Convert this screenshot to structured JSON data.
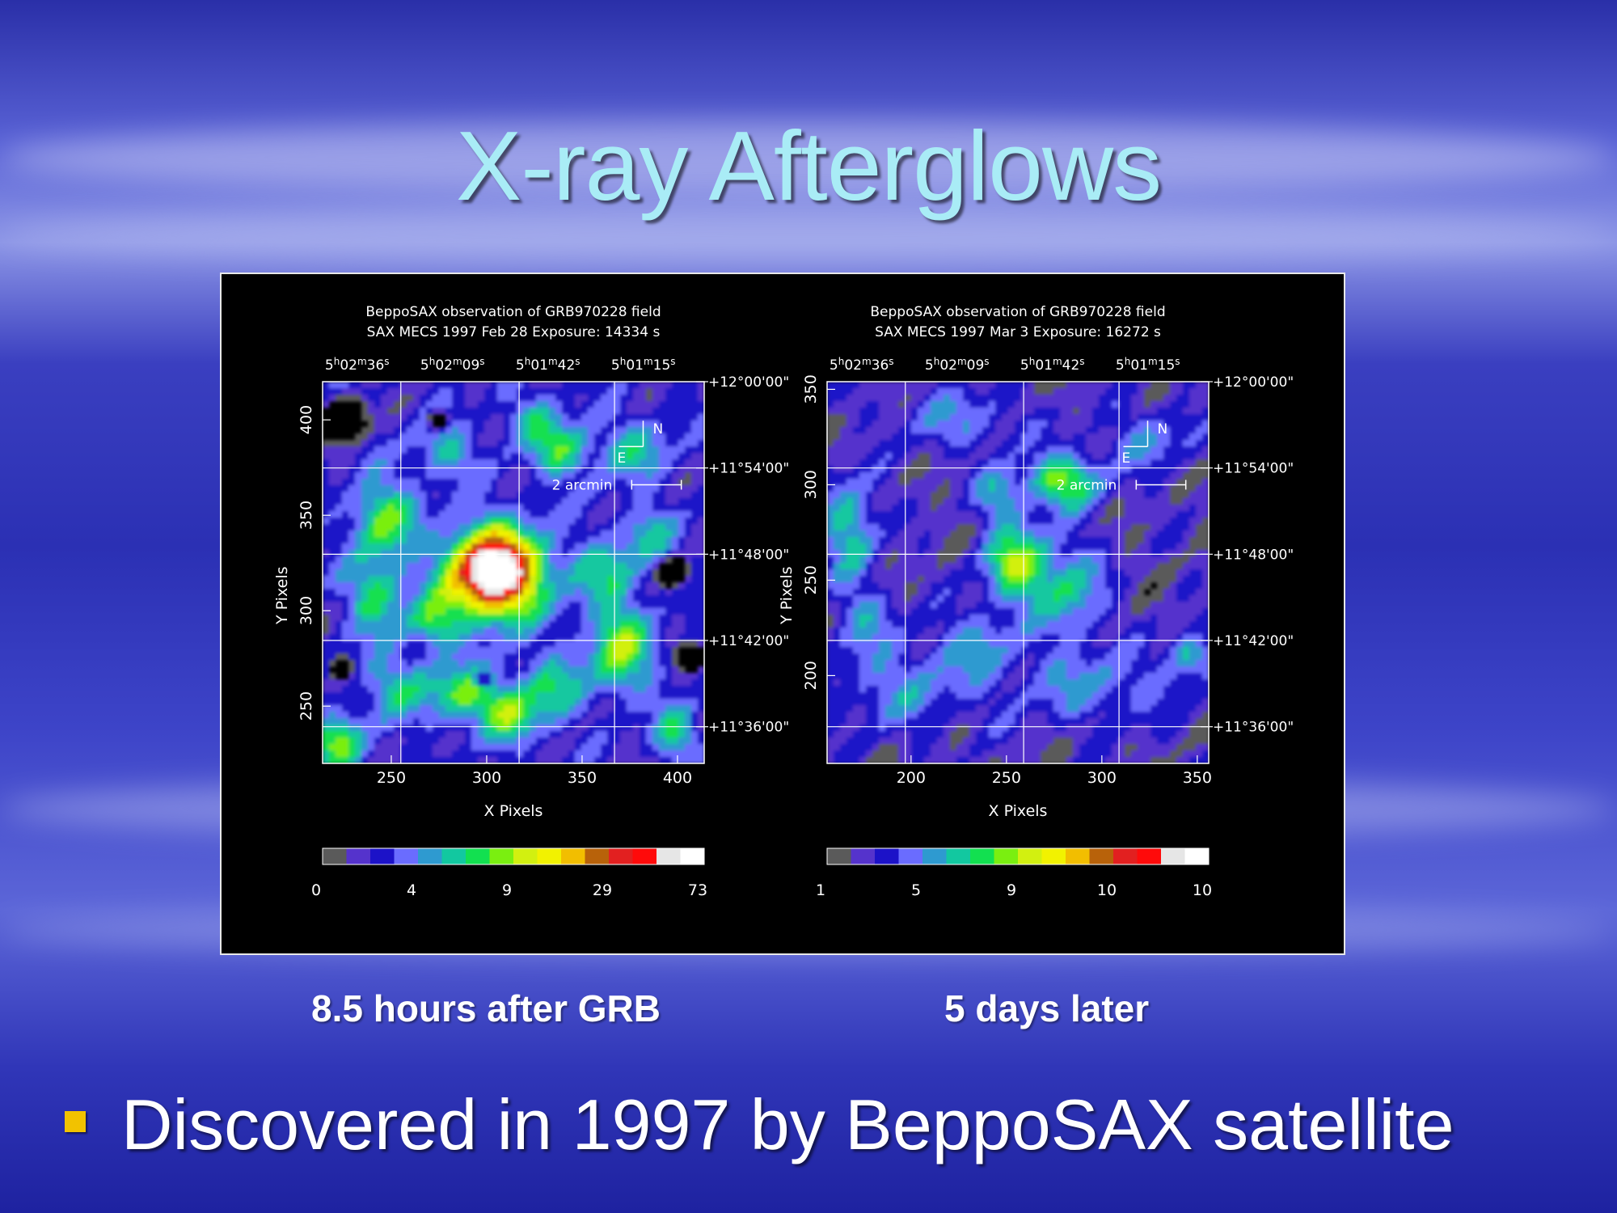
{
  "slide": {
    "title": "X-ray Afterglows",
    "caption_left": "8.5 hours after GRB",
    "caption_right": "5 days later",
    "bullet": "Discovered in 1997 by BeppoSAX satellite",
    "title_color": "#a9ecf6",
    "bullet_color": "#f2c200"
  },
  "panels": [
    {
      "header1": "BeppoSAX observation of GRB970228 field",
      "header2": "SAX MECS    1997 Feb 28     Exposure: 14334 s",
      "ra_ticks": [
        "5h02m36s",
        "5h02m09s",
        "5h01m42s",
        "5h01m15s"
      ],
      "dec_ticks": [
        "+12°00'00\"",
        "+11°54'00\"",
        "+11°48'00\"",
        "+11°42'00\"",
        "+11°36'00\""
      ],
      "x_ticks": [
        "250",
        "300",
        "350",
        "400"
      ],
      "y_ticks": [
        "400",
        "350",
        "300",
        "250"
      ],
      "xlabel": "X Pixels",
      "ylabel": "Y Pixels",
      "compass_n": "N",
      "compass_e": "E",
      "scale_label": "2 arcmin",
      "colorbar_labels": [
        "0",
        "4",
        "9",
        "29",
        "73"
      ]
    },
    {
      "header1": "BeppoSAX observation of GRB970228 field",
      "header2": "SAX MECS    1997 Mar  3     Exposure: 16272 s",
      "ra_ticks": [
        "5h02m36s",
        "5h02m09s",
        "5h01m42s",
        "5h01m15s"
      ],
      "dec_ticks": [
        "+12°00'00\"",
        "+11°54'00\"",
        "+11°48'00\"",
        "+11°42'00\"",
        "+11°36'00\""
      ],
      "x_ticks": [
        "200",
        "250",
        "300",
        "350"
      ],
      "y_ticks": [
        "350",
        "300",
        "250",
        "200"
      ],
      "xlabel": "X Pixels",
      "ylabel": "Y Pixels",
      "compass_n": "N",
      "compass_e": "E",
      "scale_label": "2 arcmin",
      "colorbar_labels": [
        "1",
        "5",
        "9",
        "10",
        "10"
      ]
    }
  ],
  "colormap": [
    "#5a5a5a",
    "#5533cc",
    "#1c12c8",
    "#6a6cff",
    "#2e9ad0",
    "#12c8a0",
    "#12e050",
    "#7aef10",
    "#d2f010",
    "#f2f200",
    "#f2be00",
    "#b8620a",
    "#e22020",
    "#ff0a0a",
    "#e6e6e6",
    "#ffffff"
  ]
}
